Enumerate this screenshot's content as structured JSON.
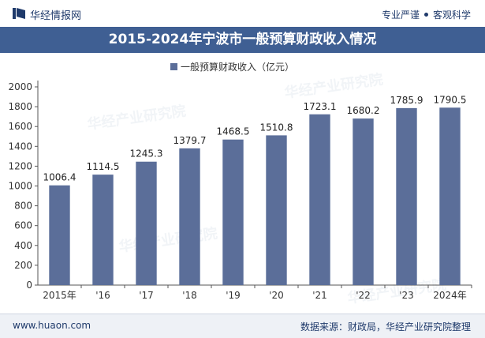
{
  "header": {
    "brand": "华经情报网",
    "tag_left": "专业严谨",
    "tag_right": "客观科学",
    "logo_icon": "book-logo-icon"
  },
  "title": "2015-2024年宁波市一般预算财政收入情况",
  "footer": {
    "url": "www.huaon.com",
    "source": "数据来源：财政局，华经产业研究院整理"
  },
  "watermark": "华经产业研究院",
  "colors": {
    "bar": "#5b6e99",
    "title_bg": "#3f5f93",
    "brand": "#1f3a6b"
  },
  "chart_data": {
    "type": "bar",
    "categories": [
      "2015年",
      "'16",
      "'17",
      "'18",
      "'19",
      "'20",
      "'21",
      "'22",
      "'23",
      "2024年"
    ],
    "series": [
      {
        "name": "一般预算财政收入（亿元）",
        "values": [
          1006.4,
          1114.5,
          1245.3,
          1379.7,
          1468.5,
          1510.8,
          1723.1,
          1680.2,
          1785.9,
          1790.5
        ]
      }
    ],
    "data_labels": [
      "1006.4",
      "1114.5",
      "1245.3",
      "1379.7",
      "1468.5",
      "1510.8",
      "1723.1",
      "1680.2",
      "1785.9",
      "1790.5"
    ],
    "yticks": [
      "0",
      "200",
      "400",
      "600",
      "800",
      "1000",
      "1200",
      "1400",
      "1600",
      "1800",
      "2000"
    ],
    "ylim": [
      0,
      2000
    ],
    "legend_position": "top-center",
    "grid": false
  }
}
